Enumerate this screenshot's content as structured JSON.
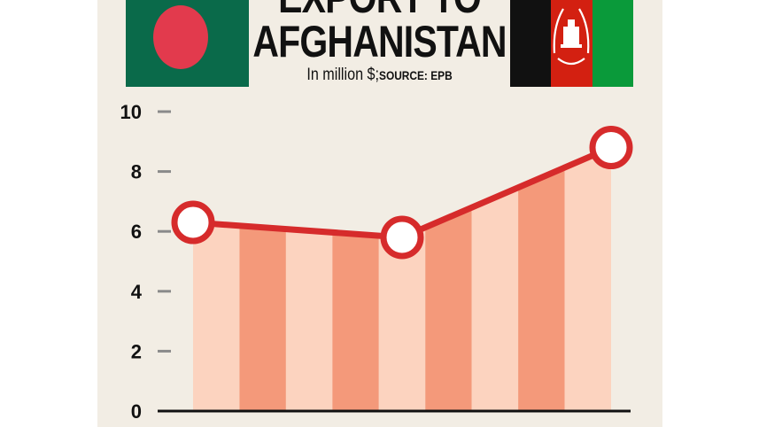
{
  "header": {
    "title_line1": "EXPORT TO",
    "title_line2": "AFGHANISTAN",
    "subtitle_units": "In million $;",
    "subtitle_source": "SOURCE: EPB"
  },
  "flags": {
    "left": {
      "name": "Bangladesh flag",
      "field": "#0a6a4a",
      "disc": "#e23a4d"
    },
    "right": {
      "name": "Afghanistan flag",
      "stripes": [
        "#111111",
        "#d32011",
        "#0a9a3a"
      ]
    }
  },
  "colors": {
    "panel_bg": "#f2ede4",
    "bar_light": "#fcd3bf",
    "bar_dark": "#f4997a",
    "line": "#d62b2b",
    "marker_fill": "#ffffff"
  },
  "chart_data": {
    "type": "line",
    "title": "EXPORT TO AFGHANISTAN",
    "subtitle": "In million $; SOURCE: EPB",
    "xlabel": "",
    "ylabel": "",
    "ylim": [
      0,
      10
    ],
    "yticks": [
      0,
      2,
      4,
      6,
      8,
      10
    ],
    "categories": [
      "",
      "",
      ""
    ],
    "series": [
      {
        "values": [
          6.3,
          5.8,
          8.8
        ]
      }
    ],
    "grid": false,
    "legend": "none"
  }
}
